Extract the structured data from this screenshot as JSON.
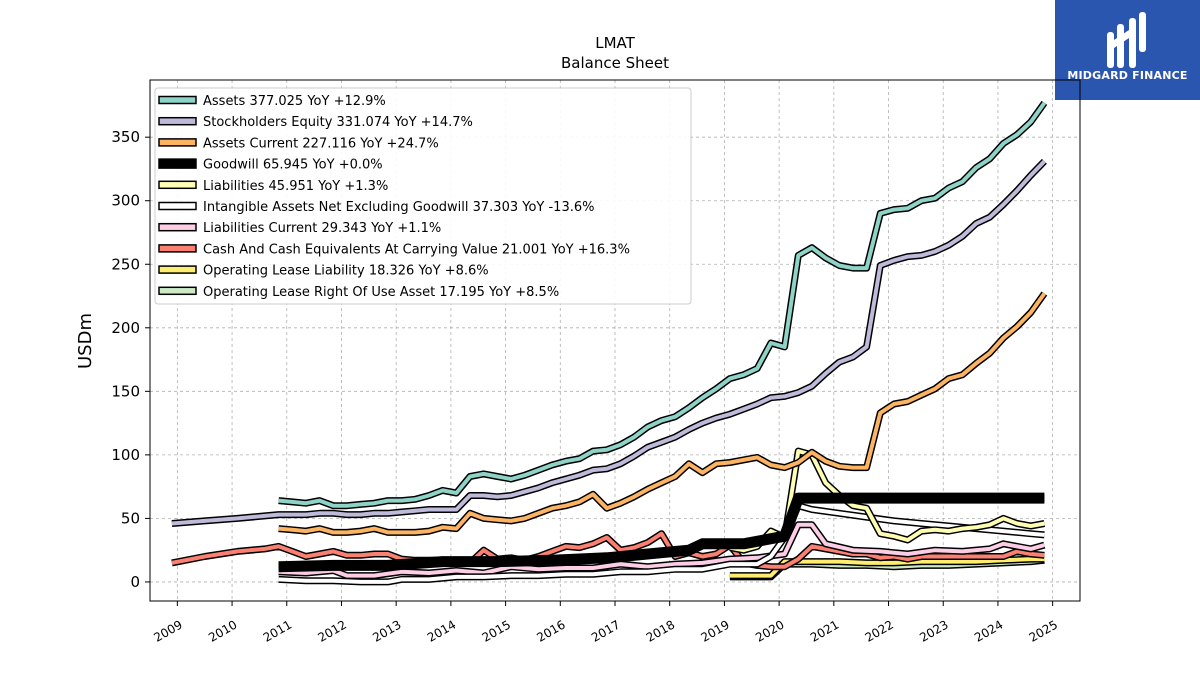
{
  "logo": {
    "text": "MIDGARD FINANCE",
    "color": "#2b56b0"
  },
  "chart_data": {
    "type": "line",
    "title": "LMAT",
    "subtitle": "Balance  Sheet",
    "xlabel": "",
    "ylabel": "USDm",
    "xlim": [
      2008.5,
      2025.5
    ],
    "ylim": [
      -15,
      395
    ],
    "grid": true,
    "legend_position": "top-left",
    "x_ticks": [
      2009,
      2010,
      2011,
      2012,
      2013,
      2014,
      2015,
      2016,
      2017,
      2018,
      2019,
      2020,
      2021,
      2022,
      2023,
      2024,
      2025
    ],
    "y_ticks": [
      0,
      50,
      100,
      150,
      200,
      250,
      300,
      350
    ],
    "series": [
      {
        "name": "Assets",
        "legend": "Assets  377.025 YoY +12.9%",
        "color": "#8dd3c7",
        "width": 4,
        "x": [
          2010.85,
          2011.1,
          2011.35,
          2011.6,
          2011.85,
          2012.1,
          2012.35,
          2012.6,
          2012.85,
          2013.1,
          2013.35,
          2013.6,
          2013.85,
          2014.1,
          2014.35,
          2014.6,
          2014.85,
          2015.1,
          2015.35,
          2015.6,
          2015.85,
          2016.1,
          2016.35,
          2016.6,
          2016.85,
          2017.1,
          2017.35,
          2017.6,
          2017.85,
          2018.1,
          2018.35,
          2018.6,
          2018.85,
          2019.1,
          2019.35,
          2019.6,
          2019.85,
          2020.1,
          2020.35,
          2020.6,
          2020.85,
          2021.1,
          2021.35,
          2021.6,
          2021.85,
          2022.1,
          2022.35,
          2022.6,
          2022.85,
          2023.1,
          2023.35,
          2023.6,
          2023.85,
          2024.1,
          2024.35,
          2024.6,
          2024.85
        ],
        "y": [
          64,
          63,
          62,
          64,
          60,
          60,
          61,
          62,
          64,
          64,
          65,
          68,
          72,
          70,
          83,
          85,
          83,
          81,
          84,
          88,
          92,
          95,
          97,
          103,
          104,
          108,
          114,
          122,
          127,
          130,
          137,
          145,
          152,
          160,
          163,
          168,
          188,
          185,
          257,
          263,
          255,
          249,
          247,
          247,
          290,
          293,
          294,
          300,
          302,
          310,
          315,
          326,
          333,
          345,
          352,
          362,
          377
        ]
      },
      {
        "name": "Stockholders Equity",
        "legend": "Stockholders Equity  331.074 YoY +14.7%",
        "color": "#bebada",
        "width": 4,
        "x": [
          2008.9,
          2009.5,
          2010.1,
          2010.6,
          2010.85,
          2011.1,
          2011.35,
          2011.6,
          2011.85,
          2012.1,
          2012.35,
          2012.6,
          2012.85,
          2013.1,
          2013.35,
          2013.6,
          2013.85,
          2014.1,
          2014.35,
          2014.6,
          2014.85,
          2015.1,
          2015.35,
          2015.6,
          2015.85,
          2016.1,
          2016.35,
          2016.6,
          2016.85,
          2017.1,
          2017.35,
          2017.6,
          2017.85,
          2018.1,
          2018.35,
          2018.6,
          2018.85,
          2019.1,
          2019.35,
          2019.6,
          2019.85,
          2020.1,
          2020.35,
          2020.6,
          2020.85,
          2021.1,
          2021.35,
          2021.6,
          2021.85,
          2022.1,
          2022.35,
          2022.6,
          2022.85,
          2023.1,
          2023.35,
          2023.6,
          2023.85,
          2024.1,
          2024.35,
          2024.6,
          2024.85
        ],
        "y": [
          46,
          48,
          50,
          52,
          53,
          53,
          53,
          54,
          54,
          53,
          53,
          54,
          54,
          55,
          56,
          57,
          57,
          57,
          68,
          68,
          67,
          68,
          71,
          74,
          78,
          81,
          84,
          88,
          89,
          93,
          99,
          106,
          110,
          114,
          120,
          125,
          129,
          132,
          136,
          140,
          145,
          146,
          149,
          154,
          164,
          173,
          177,
          185,
          249,
          253,
          256,
          257,
          260,
          265,
          272,
          282,
          287,
          297,
          308,
          320,
          331
        ]
      },
      {
        "name": "Assets Current",
        "legend": "Assets Current  227.116 YoY +24.7%",
        "color": "#fdb462",
        "width": 4,
        "x": [
          2010.85,
          2011.1,
          2011.35,
          2011.6,
          2011.85,
          2012.1,
          2012.35,
          2012.6,
          2012.85,
          2013.1,
          2013.35,
          2013.6,
          2013.85,
          2014.1,
          2014.35,
          2014.6,
          2014.85,
          2015.1,
          2015.35,
          2015.6,
          2015.85,
          2016.1,
          2016.35,
          2016.6,
          2016.85,
          2017.1,
          2017.35,
          2017.6,
          2017.85,
          2018.1,
          2018.35,
          2018.6,
          2018.85,
          2019.1,
          2019.35,
          2019.6,
          2019.85,
          2020.1,
          2020.35,
          2020.6,
          2020.85,
          2021.1,
          2021.35,
          2021.6,
          2021.85,
          2022.1,
          2022.35,
          2022.6,
          2022.85,
          2023.1,
          2023.35,
          2023.6,
          2023.85,
          2024.1,
          2024.35,
          2024.6,
          2024.85
        ],
        "y": [
          42,
          41,
          40,
          42,
          39,
          39,
          40,
          42,
          39,
          39,
          39,
          40,
          43,
          42,
          54,
          50,
          49,
          48,
          50,
          54,
          58,
          60,
          63,
          69,
          58,
          62,
          67,
          73,
          78,
          83,
          93,
          86,
          93,
          94,
          96,
          98,
          92,
          90,
          94,
          102,
          95,
          91,
          90,
          90,
          133,
          140,
          142,
          147,
          152,
          160,
          163,
          172,
          180,
          192,
          201,
          212,
          227
        ]
      },
      {
        "name": "Goodwill",
        "legend": "Goodwill  65.945 YoY +0.0%",
        "color": "#000000",
        "width": 8,
        "x": [
          2010.85,
          2011.85,
          2012.85,
          2013.85,
          2014.85,
          2015.85,
          2016.85,
          2017.85,
          2018.35,
          2018.6,
          2019.35,
          2019.6,
          2020.1,
          2020.35,
          2024.85
        ],
        "y": [
          12,
          13,
          13,
          16,
          16,
          17,
          19,
          23,
          25,
          30,
          30,
          32,
          36,
          66,
          66
        ]
      },
      {
        "name": "Liabilities",
        "legend": "Liabilities  45.951 YoY +1.3%",
        "color": "#ffffb3",
        "width": 4,
        "x": [
          2019.1,
          2019.35,
          2019.6,
          2019.85,
          2020.1,
          2020.35,
          2020.6,
          2020.85,
          2021.1,
          2021.35,
          2021.6,
          2021.85,
          2022.1,
          2022.35,
          2022.6,
          2022.85,
          2023.1,
          2023.35,
          2023.6,
          2023.85,
          2024.1,
          2024.35,
          2024.6,
          2024.85
        ],
        "y": [
          27,
          25,
          28,
          40,
          35,
          103,
          100,
          78,
          68,
          60,
          58,
          38,
          36,
          33,
          40,
          41,
          40,
          42,
          43,
          45,
          50,
          46,
          44,
          46
        ]
      },
      {
        "name": "Intangible Assets Net Excluding Goodwill",
        "legend": "Intangible Assets Net Excluding Goodwill  37.303 YoY -13.6%",
        "color": "#ffffff",
        "width": 4,
        "x": [
          2010.85,
          2011.35,
          2011.85,
          2012.35,
          2012.85,
          2013.1,
          2013.6,
          2014.1,
          2014.6,
          2015.1,
          2015.6,
          2016.1,
          2016.6,
          2017.1,
          2017.6,
          2018.1,
          2018.6,
          2019.1,
          2019.6,
          2019.85,
          2020.1,
          2020.35,
          2020.6,
          2021.1,
          2021.6,
          2022.1,
          2022.6,
          2023.1,
          2023.6,
          2024.1,
          2024.6,
          2024.85
        ],
        "y": [
          2,
          1,
          1,
          0,
          0,
          2,
          2,
          4,
          4,
          5,
          5,
          6,
          6,
          8,
          8,
          10,
          10,
          14,
          14,
          20,
          35,
          60,
          57,
          54,
          51,
          48,
          46,
          44,
          42,
          40,
          38,
          37
        ]
      },
      {
        "name": "Liabilities Current",
        "legend": "Liabilities Current  29.343 YoY +1.1%",
        "color": "#fccde5",
        "width": 4,
        "x": [
          2010.85,
          2011.35,
          2011.85,
          2012.1,
          2012.6,
          2013.1,
          2013.6,
          2014.1,
          2014.6,
          2015.1,
          2015.6,
          2016.1,
          2016.6,
          2017.1,
          2017.6,
          2018.1,
          2018.6,
          2019.1,
          2019.6,
          2020.1,
          2020.35,
          2020.6,
          2020.85,
          2021.35,
          2021.85,
          2022.35,
          2022.85,
          2023.35,
          2023.85,
          2024.1,
          2024.35,
          2024.6,
          2024.85
        ],
        "y": [
          8,
          7,
          9,
          5,
          5,
          8,
          7,
          9,
          7,
          12,
          10,
          11,
          11,
          14,
          12,
          14,
          15,
          18,
          19,
          22,
          45,
          45,
          30,
          25,
          24,
          22,
          25,
          24,
          26,
          30,
          28,
          26,
          29
        ]
      },
      {
        "name": "Cash And Cash Equivalents At Carrying Value",
        "legend": "Cash And Cash Equivalents At Carrying Value  21.001 YoY +16.3%",
        "color": "#fb8072",
        "width": 4,
        "x": [
          2008.9,
          2009.5,
          2010.1,
          2010.6,
          2010.85,
          2011.1,
          2011.35,
          2011.6,
          2011.85,
          2012.1,
          2012.35,
          2012.6,
          2012.85,
          2013.1,
          2013.35,
          2013.6,
          2013.85,
          2014.1,
          2014.35,
          2014.6,
          2014.85,
          2015.1,
          2015.35,
          2015.6,
          2015.85,
          2016.1,
          2016.35,
          2016.6,
          2016.85,
          2017.1,
          2017.35,
          2017.6,
          2017.85,
          2018.1,
          2018.35,
          2018.6,
          2018.85,
          2019.1,
          2019.35,
          2019.6,
          2019.85,
          2020.1,
          2020.35,
          2020.6,
          2020.85,
          2021.1,
          2021.35,
          2021.6,
          2021.85,
          2022.1,
          2022.35,
          2022.6,
          2022.85,
          2023.1,
          2023.35,
          2023.6,
          2023.85,
          2024.1,
          2024.35,
          2024.6,
          2024.85
        ],
        "y": [
          15,
          20,
          24,
          26,
          28,
          24,
          20,
          22,
          24,
          21,
          21,
          22,
          22,
          18,
          17,
          17,
          17,
          17,
          15,
          25,
          18,
          19,
          17,
          20,
          24,
          28,
          27,
          30,
          35,
          25,
          27,
          31,
          38,
          20,
          23,
          20,
          22,
          29,
          15,
          13,
          12,
          12,
          18,
          28,
          26,
          24,
          22,
          22,
          19,
          20,
          18,
          20,
          20,
          20,
          20,
          20,
          20,
          20,
          24,
          22,
          21
        ]
      },
      {
        "name": "Operating Lease Liability",
        "legend": "Operating Lease Liability  18.326 YoY +8.6%",
        "color": "#ffed6f",
        "width": 4,
        "x": [
          2019.1,
          2019.35,
          2019.6,
          2019.85,
          2020.1,
          2020.6,
          2021.1,
          2021.6,
          2022.1,
          2022.6,
          2023.1,
          2023.6,
          2024.1,
          2024.6,
          2024.85
        ],
        "y": [
          5,
          5,
          5,
          5,
          16,
          16,
          16,
          15,
          15,
          16,
          16,
          16,
          17,
          18,
          18
        ]
      },
      {
        "name": "Operating Lease Right Of Use Asset",
        "legend": "Operating Lease Right Of Use Asset  17.195 YoY +8.5%",
        "color": "#ccebc5",
        "width": 4,
        "x": [
          2019.1,
          2019.35,
          2019.6,
          2019.85,
          2020.1,
          2020.6,
          2021.1,
          2021.6,
          2022.1,
          2022.6,
          2023.1,
          2023.6,
          2024.1,
          2024.6,
          2024.85
        ],
        "y": [
          4,
          4,
          4,
          4,
          14,
          14,
          13,
          13,
          12,
          13,
          13,
          14,
          15,
          16,
          17
        ]
      }
    ]
  }
}
